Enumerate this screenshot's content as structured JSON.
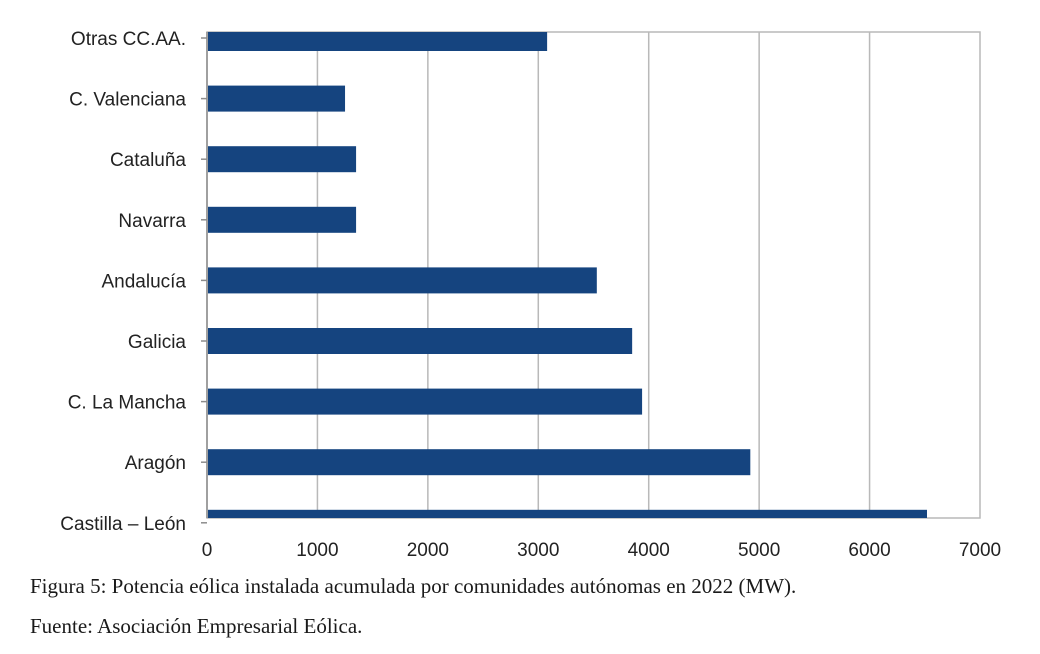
{
  "chart_data": {
    "type": "bar",
    "orientation": "horizontal",
    "categories": [
      "Otras CC.AA.",
      "C. Valenciana",
      "Cataluña",
      "Navarra",
      "Andalucía",
      "Galicia",
      "C. La Mancha",
      "Aragón",
      "Castilla – León"
    ],
    "values": [
      3080,
      1250,
      1350,
      1350,
      3530,
      3850,
      3940,
      4920,
      6520
    ],
    "xlim": [
      0,
      7000
    ],
    "xticks": [
      "0",
      "1000",
      "2000",
      "3000",
      "4000",
      "5000",
      "6000",
      "7000"
    ],
    "grid": "vertical",
    "legend": "none",
    "bar_color": "#15447f",
    "title": "",
    "xlabel": "",
    "ylabel": ""
  },
  "caption": {
    "figure": "Figura 5: Potencia eólica instalada acumulada por comunidades autónomas en 2022 (MW).",
    "source": "Fuente: Asociación Empresarial Eólica."
  }
}
